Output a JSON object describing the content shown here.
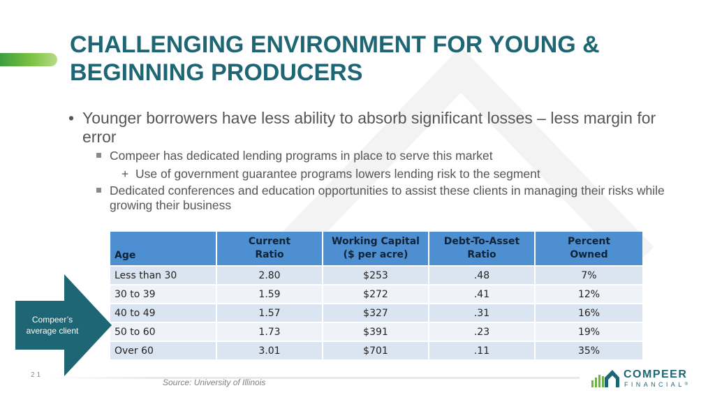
{
  "slide": {
    "title_lines": [
      "CHALLENGING ENVIRONMENT FOR YOUNG &",
      "BEGINNING PRODUCERS"
    ],
    "page_number": "21",
    "source": "Source: University of Illinois"
  },
  "bullets": {
    "main_marker": "•",
    "main": "Younger borrowers have less ability to absorb significant losses – less margin for error",
    "sub1": "Compeer has dedicated lending programs in place to serve this market",
    "sub1_child_marker": "+",
    "sub1_child": "Use of government guarantee programs lowers lending risk to the segment",
    "sub2": "Dedicated conferences and education opportunities to assist these clients in managing their risks while growing their business"
  },
  "table": {
    "headers": [
      [
        "Age"
      ],
      [
        "Current",
        "Ratio"
      ],
      [
        "Working Capital",
        "($ per acre)"
      ],
      [
        "Debt-To-Asset",
        "Ratio"
      ],
      [
        "Percent",
        "Owned"
      ]
    ],
    "rows": [
      [
        "Less than 30",
        "2.80",
        "$253",
        ".48",
        "7%"
      ],
      [
        "30 to 39",
        "1.59",
        "$272",
        ".41",
        "12%"
      ],
      [
        "40 to 49",
        "1.57",
        "$327",
        ".31",
        "16%"
      ],
      [
        "50 to 60",
        "1.73",
        "$391",
        ".23",
        "19%"
      ],
      [
        "Over 60",
        "3.01",
        "$701",
        ".11",
        "35%"
      ]
    ]
  },
  "callout": {
    "lines": [
      "Compeer’s",
      "average client"
    ],
    "color": "#1f6674"
  },
  "logo": {
    "name": "COMPEER",
    "sub": "FINANCIAL",
    "mark": "®",
    "colors": {
      "teal": "#1f6674",
      "green": "#6cb33f"
    }
  },
  "colors": {
    "title": "#1f6674",
    "accent_bar": "#7cc242",
    "table_header": "#4e8fd1",
    "row_odd": "#dbe5f1",
    "row_even": "#eff3f9"
  }
}
